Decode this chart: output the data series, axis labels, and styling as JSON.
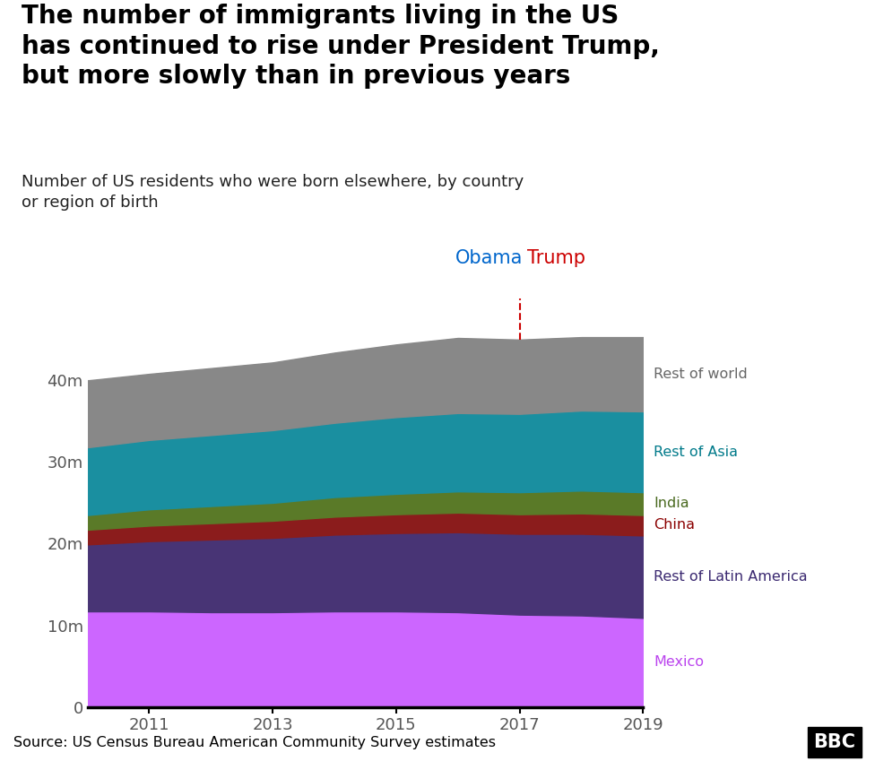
{
  "title": "The number of immigrants living in the US\nhas continued to rise under President Trump,\nbut more slowly than in previous years",
  "subtitle": "Number of US residents who were born elsewhere, by country\nor region of birth",
  "source": "Source: US Census Bureau American Community Survey estimates",
  "years": [
    2010,
    2011,
    2012,
    2013,
    2014,
    2015,
    2016,
    2017,
    2018,
    2019
  ],
  "mexico": [
    11700,
    11700,
    11600,
    11600,
    11700,
    11700,
    11600,
    11300,
    11200,
    10900
  ],
  "rest_latin_am": [
    8200,
    8600,
    8900,
    9100,
    9400,
    9600,
    9800,
    9900,
    10000,
    10100
  ],
  "china": [
    1800,
    1900,
    2000,
    2100,
    2200,
    2300,
    2400,
    2400,
    2500,
    2500
  ],
  "india": [
    1800,
    2000,
    2100,
    2200,
    2400,
    2500,
    2600,
    2700,
    2800,
    2800
  ],
  "rest_asia": [
    8300,
    8500,
    8700,
    8900,
    9100,
    9400,
    9600,
    9600,
    9800,
    9900
  ],
  "rest_world": [
    8200,
    8100,
    8200,
    8300,
    8600,
    8900,
    9200,
    9100,
    9000,
    9100
  ],
  "colors": {
    "mexico": "#cc66ff",
    "rest_latin_am": "#483475",
    "china": "#8b1c1c",
    "india": "#5a7a28",
    "rest_asia": "#1a8fa0",
    "rest_world": "#888888"
  },
  "label_colors": {
    "mexico": "#bb44ee",
    "rest_latin_am": "#3a2870",
    "china": "#8b0000",
    "india": "#4a6a20",
    "rest_asia": "#007a8a",
    "rest_world": "#666666"
  },
  "labels": {
    "mexico": "Mexico",
    "rest_latin_am": "Rest of Latin America",
    "china": "China",
    "india": "India",
    "rest_asia": "Rest of Asia",
    "rest_world": "Rest of world"
  },
  "obama_label": "Obama",
  "trump_label": "Trump",
  "obama_color": "#0066cc",
  "trump_color": "#cc0000",
  "transition_year": 2017,
  "xlim": [
    2010,
    2019
  ],
  "ylim": [
    0,
    50000
  ],
  "yticks": [
    0,
    10000,
    20000,
    30000,
    40000
  ],
  "ytick_labels": [
    "0",
    "10m",
    "20m",
    "30m",
    "40m"
  ],
  "xticks": [
    2011,
    2013,
    2015,
    2017,
    2019
  ],
  "background_color": "#ffffff",
  "footer_bg": "#dddddd"
}
